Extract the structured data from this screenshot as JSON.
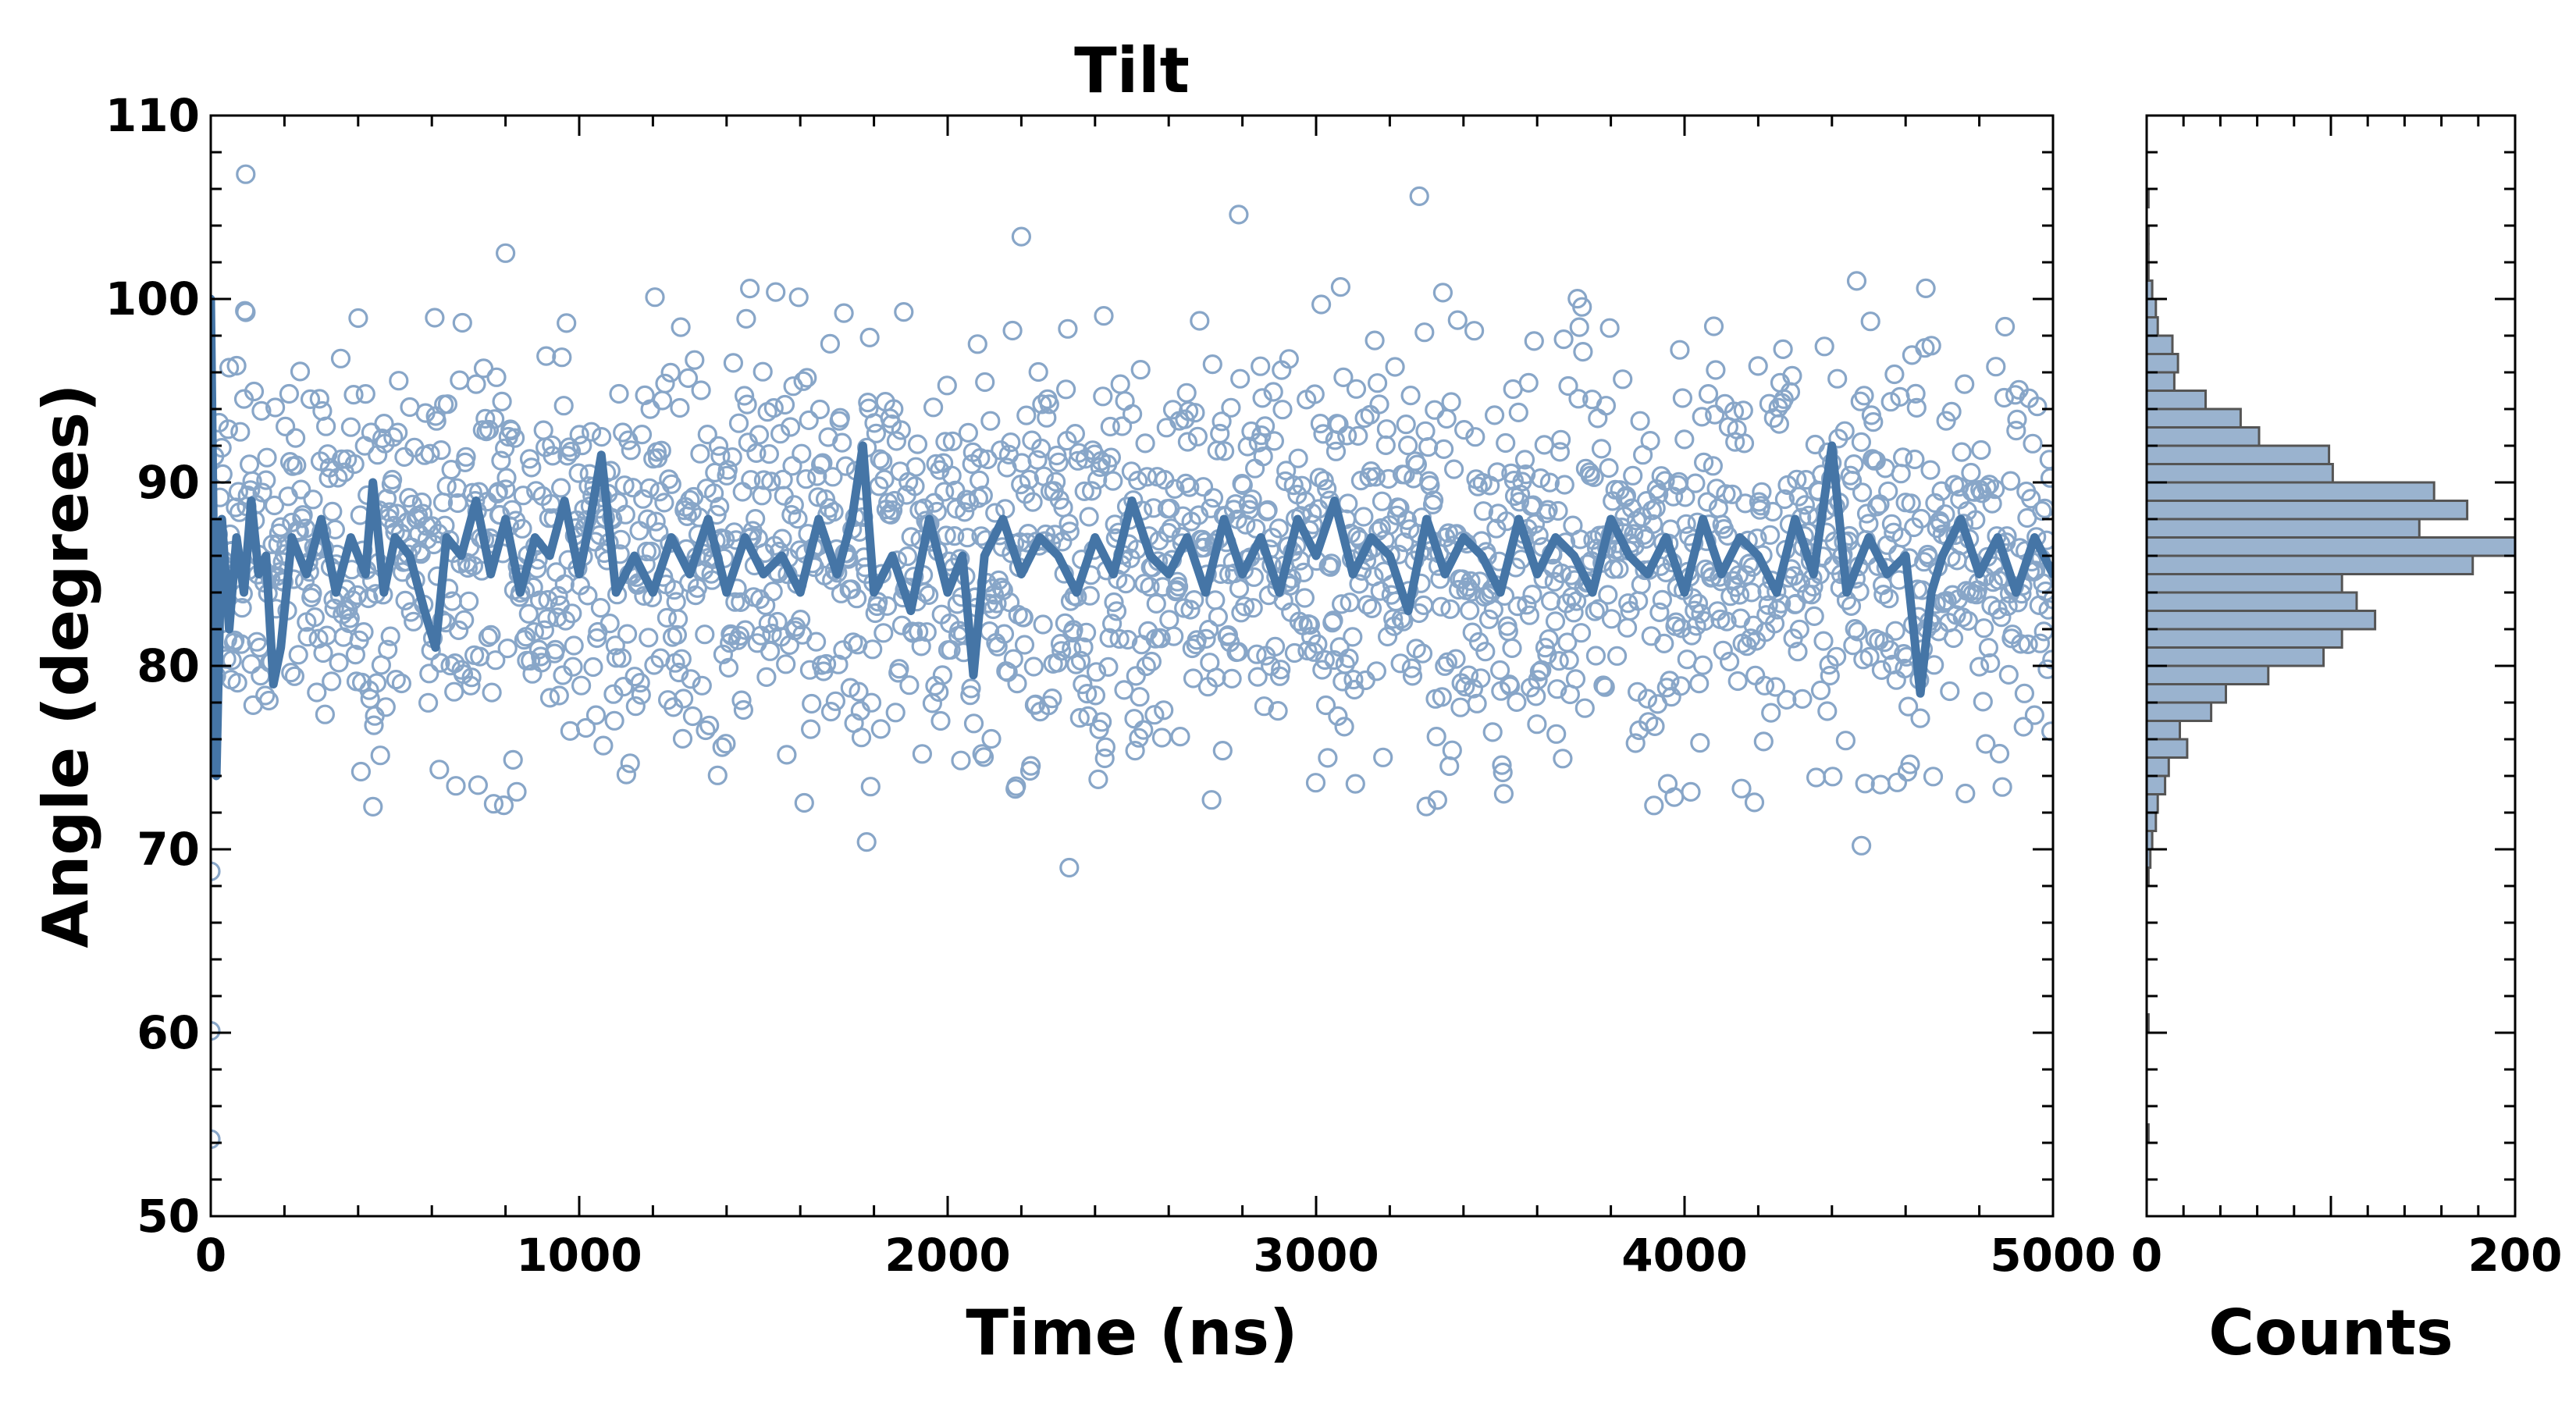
{
  "colors": {
    "scatter_stroke": "#88a6c8",
    "line": "#4575a6",
    "hist_fill": "#9ab3cf",
    "hist_stroke": "#555555",
    "axis": "#000000"
  },
  "chart_data": [
    {
      "type": "scatter",
      "title": "Tilt",
      "xlabel": "Time (ns)",
      "ylabel": "Angle (degrees)",
      "xlim": [
        0,
        5000
      ],
      "ylim": [
        50,
        110
      ],
      "xticks": [
        "0",
        "1000",
        "2000",
        "3000",
        "4000",
        "5000"
      ],
      "yticks": [
        "50",
        "60",
        "70",
        "80",
        "90",
        "100",
        "110"
      ],
      "series": [
        {
          "kind": "scatter",
          "marker": "open-circle",
          "n_points": 2000,
          "mean": 86,
          "std": 5.5,
          "notable_points": [
            {
              "x": 95,
              "y": 106.8
            },
            {
              "x": 3280,
              "y": 105.6
            },
            {
              "x": 2790,
              "y": 104.6
            },
            {
              "x": 2200,
              "y": 103.4
            },
            {
              "x": 800,
              "y": 102.5
            },
            {
              "x": 2330,
              "y": 69.0
            },
            {
              "x": 1780,
              "y": 70.4
            },
            {
              "x": 4480,
              "y": 70.2
            },
            {
              "x": 0,
              "y": 68.8
            },
            {
              "x": 0,
              "y": 60.1
            },
            {
              "x": 0,
              "y": 54.2
            }
          ]
        },
        {
          "kind": "line",
          "description": "running average",
          "points": [
            [
              0,
              100
            ],
            [
              15,
              74
            ],
            [
              30,
              88
            ],
            [
              50,
              82
            ],
            [
              70,
              87
            ],
            [
              90,
              84
            ],
            [
              110,
              89
            ],
            [
              130,
              85
            ],
            [
              150,
              86
            ],
            [
              170,
              79
            ],
            [
              190,
              81
            ],
            [
              220,
              87
            ],
            [
              260,
              85
            ],
            [
              300,
              88
            ],
            [
              340,
              84
            ],
            [
              380,
              87
            ],
            [
              420,
              85
            ],
            [
              440,
              90
            ],
            [
              470,
              84
            ],
            [
              500,
              87
            ],
            [
              540,
              86
            ],
            [
              580,
              83
            ],
            [
              610,
              81
            ],
            [
              640,
              87
            ],
            [
              680,
              86
            ],
            [
              720,
              89
            ],
            [
              760,
              85
            ],
            [
              800,
              88
            ],
            [
              840,
              84
            ],
            [
              880,
              87
            ],
            [
              920,
              86
            ],
            [
              960,
              89
            ],
            [
              1000,
              85
            ],
            [
              1030,
              88
            ],
            [
              1060,
              91.5
            ],
            [
              1100,
              84
            ],
            [
              1150,
              86
            ],
            [
              1200,
              84
            ],
            [
              1250,
              87
            ],
            [
              1300,
              85
            ],
            [
              1350,
              88
            ],
            [
              1400,
              84
            ],
            [
              1450,
              87
            ],
            [
              1500,
              85
            ],
            [
              1550,
              86
            ],
            [
              1600,
              84
            ],
            [
              1650,
              88
            ],
            [
              1700,
              85
            ],
            [
              1740,
              88
            ],
            [
              1770,
              92
            ],
            [
              1800,
              84
            ],
            [
              1850,
              86
            ],
            [
              1900,
              83
            ],
            [
              1950,
              88
            ],
            [
              2000,
              84
            ],
            [
              2040,
              86
            ],
            [
              2070,
              79.5
            ],
            [
              2100,
              86
            ],
            [
              2150,
              88
            ],
            [
              2200,
              85
            ],
            [
              2250,
              87
            ],
            [
              2300,
              86
            ],
            [
              2350,
              84
            ],
            [
              2400,
              87
            ],
            [
              2450,
              85
            ],
            [
              2500,
              89
            ],
            [
              2550,
              86
            ],
            [
              2600,
              85
            ],
            [
              2650,
              87
            ],
            [
              2700,
              84
            ],
            [
              2750,
              88
            ],
            [
              2800,
              85
            ],
            [
              2850,
              87
            ],
            [
              2900,
              84
            ],
            [
              2950,
              88
            ],
            [
              3000,
              86
            ],
            [
              3050,
              89
            ],
            [
              3100,
              85
            ],
            [
              3150,
              87
            ],
            [
              3200,
              86
            ],
            [
              3250,
              83
            ],
            [
              3300,
              88
            ],
            [
              3350,
              85
            ],
            [
              3400,
              87
            ],
            [
              3450,
              86
            ],
            [
              3500,
              84
            ],
            [
              3550,
              88
            ],
            [
              3600,
              85
            ],
            [
              3650,
              87
            ],
            [
              3700,
              86
            ],
            [
              3750,
              84
            ],
            [
              3800,
              88
            ],
            [
              3850,
              86
            ],
            [
              3900,
              85
            ],
            [
              3950,
              87
            ],
            [
              4000,
              84
            ],
            [
              4050,
              88
            ],
            [
              4100,
              85
            ],
            [
              4150,
              87
            ],
            [
              4200,
              86
            ],
            [
              4250,
              84
            ],
            [
              4300,
              88
            ],
            [
              4350,
              85
            ],
            [
              4400,
              92
            ],
            [
              4440,
              84
            ],
            [
              4500,
              87
            ],
            [
              4550,
              85
            ],
            [
              4600,
              86
            ],
            [
              4640,
              78.5
            ],
            [
              4670,
              84
            ],
            [
              4700,
              86
            ],
            [
              4750,
              88
            ],
            [
              4800,
              85
            ],
            [
              4850,
              87
            ],
            [
              4900,
              84
            ],
            [
              4950,
              87
            ],
            [
              5000,
              85
            ]
          ]
        }
      ]
    },
    {
      "type": "bar",
      "orientation": "horizontal",
      "xlabel": "Counts",
      "xlim": [
        0,
        200
      ],
      "ylim": [
        50,
        110
      ],
      "xticks": [
        "0",
        "200"
      ],
      "bin_width": 1,
      "bins": [
        [
          54,
          1
        ],
        [
          55,
          0
        ],
        [
          56,
          0
        ],
        [
          57,
          0
        ],
        [
          58,
          0
        ],
        [
          59,
          0
        ],
        [
          60,
          1
        ],
        [
          61,
          0
        ],
        [
          62,
          0
        ],
        [
          63,
          0
        ],
        [
          64,
          0
        ],
        [
          65,
          0
        ],
        [
          66,
          0
        ],
        [
          67,
          0
        ],
        [
          68,
          1
        ],
        [
          69,
          2
        ],
        [
          70,
          3
        ],
        [
          71,
          5
        ],
        [
          72,
          6
        ],
        [
          73,
          10
        ],
        [
          74,
          12
        ],
        [
          75,
          22
        ],
        [
          76,
          18
        ],
        [
          77,
          35
        ],
        [
          78,
          43
        ],
        [
          79,
          66
        ],
        [
          80,
          96
        ],
        [
          81,
          106
        ],
        [
          82,
          124
        ],
        [
          83,
          114
        ],
        [
          84,
          106
        ],
        [
          85,
          177
        ],
        [
          86,
          202
        ],
        [
          87,
          148
        ],
        [
          88,
          174
        ],
        [
          89,
          156
        ],
        [
          90,
          101
        ],
        [
          91,
          99
        ],
        [
          92,
          61
        ],
        [
          93,
          51
        ],
        [
          94,
          32
        ],
        [
          95,
          15
        ],
        [
          96,
          17
        ],
        [
          97,
          14
        ],
        [
          98,
          6
        ],
        [
          99,
          5
        ],
        [
          100,
          3
        ],
        [
          101,
          1
        ],
        [
          102,
          1
        ],
        [
          103,
          1
        ],
        [
          104,
          0
        ],
        [
          105,
          1
        ],
        [
          106,
          0
        ]
      ]
    }
  ]
}
